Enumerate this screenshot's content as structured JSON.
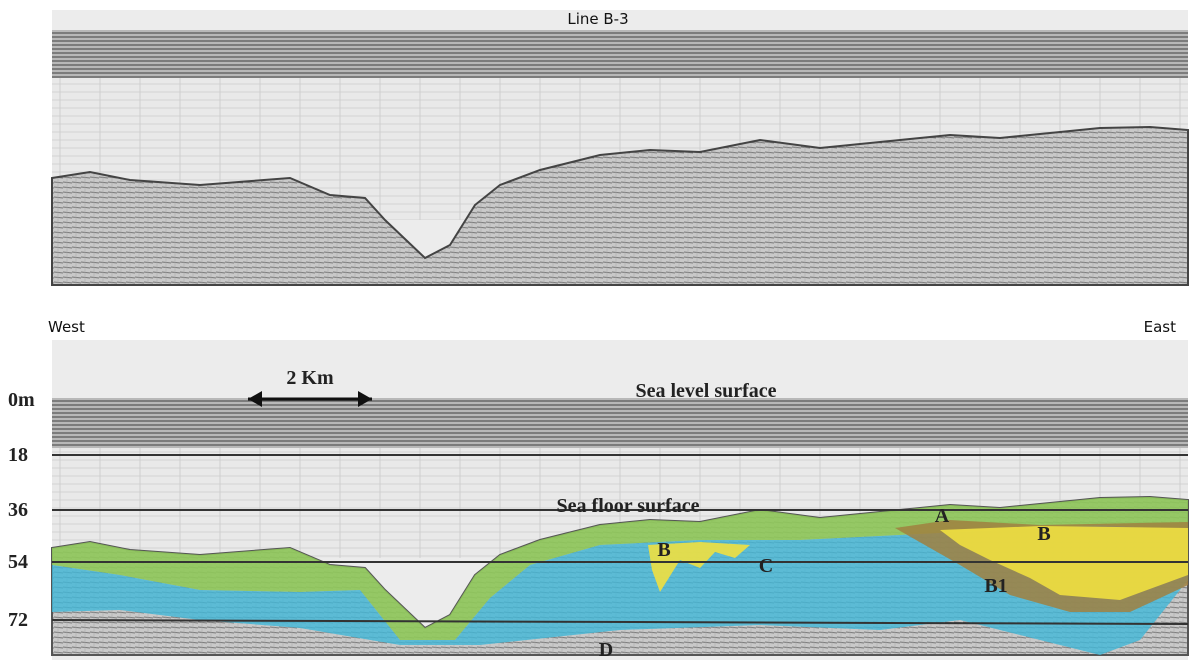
{
  "top_panel": {
    "title": "Line B-3"
  },
  "bottom_panel": {
    "west_label": "West",
    "east_label": "East",
    "scale_label": "2 Km",
    "depth_labels": [
      "0m",
      "18",
      "36",
      "54",
      "72"
    ],
    "annotations": {
      "sea_level": "Sea level surface",
      "sea_floor": "Sea floor surface"
    },
    "units": [
      "A",
      "B",
      "B",
      "B1",
      "C",
      "D"
    ]
  }
}
